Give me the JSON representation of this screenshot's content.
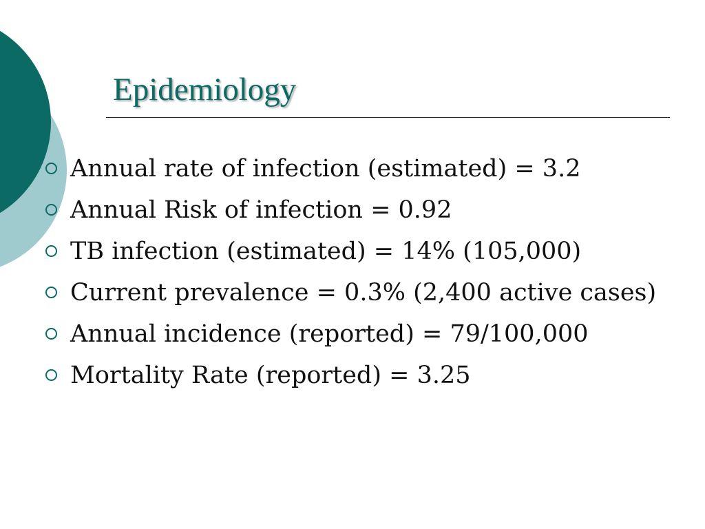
{
  "slide": {
    "title": "Epidemiology",
    "bullets": [
      "Annual rate of infection (estimated) = 3.2",
      "Annual Risk of infection = 0.92",
      "TB infection (estimated) = 14% (105,000)",
      "Current prevalence = 0.3% (2,400 active cases)",
      "Annual incidence (reported) = 79/100,000",
      "Mortality Rate (reported) = 3.25"
    ]
  },
  "colors": {
    "accent": "#0c6a64",
    "accent_light": "#9fcbcf",
    "text": "#111111"
  },
  "icons": {
    "bullet": "hollow-circle-bullet-icon"
  }
}
